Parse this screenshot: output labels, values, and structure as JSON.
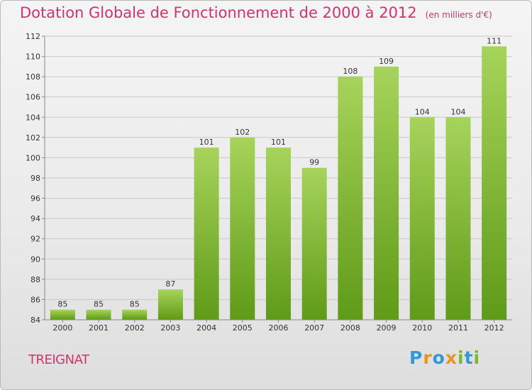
{
  "title": "Dotation Globale de Fonctionnement de 2000 à 2012",
  "unit": "(en milliers d'€)",
  "commune": "TREIGNAT",
  "logo": {
    "letters": [
      "P",
      "r",
      "o",
      "x",
      "i",
      "t",
      "i"
    ],
    "colors": [
      "#2f9ad7",
      "#e8941f",
      "#2f9ad7",
      "#e8941f",
      "#7ab929",
      "#2f9ad7",
      "#7ab929"
    ]
  },
  "colors": {
    "title": "#d2336c",
    "bar_light": "#a6d45a",
    "bar_dark": "#5f9a18",
    "grid": "#c8c8c8"
  },
  "chart_data": {
    "type": "bar",
    "categories": [
      "2000",
      "2001",
      "2002",
      "2003",
      "2004",
      "2005",
      "2006",
      "2007",
      "2008",
      "2009",
      "2010",
      "2011",
      "2012"
    ],
    "values": [
      85,
      85,
      85,
      87,
      101,
      102,
      101,
      99,
      108,
      109,
      104,
      104,
      111
    ],
    "value_labels": [
      "85",
      "85",
      "85",
      "87",
      "101",
      "102",
      "101",
      "99",
      "108",
      "109",
      "104",
      "104",
      "111"
    ],
    "yticks": [
      84,
      86,
      88,
      90,
      92,
      94,
      96,
      98,
      100,
      102,
      104,
      106,
      108,
      110,
      112
    ],
    "ytick_labels": [
      "84",
      "86",
      "88",
      "90",
      "92",
      "94",
      "96",
      "98",
      "100",
      "102",
      "104",
      "106",
      "108",
      "110",
      "112"
    ],
    "ylim": [
      84,
      112
    ],
    "grid": true
  }
}
